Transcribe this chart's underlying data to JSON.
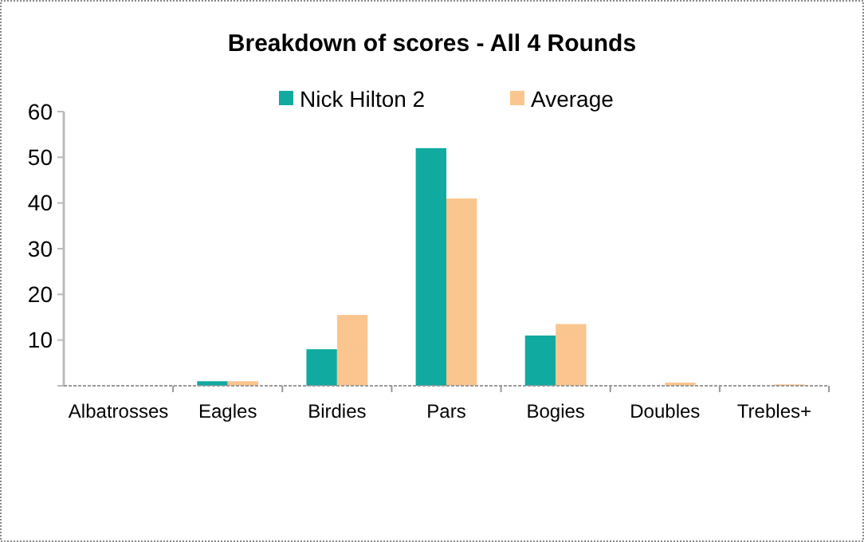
{
  "chart_data": {
    "type": "bar",
    "title": "Breakdown of scores - All 4 Rounds",
    "categories": [
      "Albatrosses",
      "Eagles",
      "Birdies",
      "Pars",
      "Bogies",
      "Doubles",
      "Trebles+"
    ],
    "series": [
      {
        "name": "Nick Hilton 2",
        "color": "#11aaa0",
        "values": [
          0,
          1,
          8,
          52,
          11,
          0,
          0
        ]
      },
      {
        "name": "Average",
        "color": "#fbc590",
        "values": [
          0,
          1,
          15.5,
          41,
          13.5,
          0.7,
          0.3
        ]
      }
    ],
    "ylim": [
      0,
      60
    ],
    "yticks": [
      {
        "value": 0,
        "label": null
      },
      10,
      20,
      30,
      40,
      50,
      60
    ],
    "legend": "top",
    "grid": false
  }
}
